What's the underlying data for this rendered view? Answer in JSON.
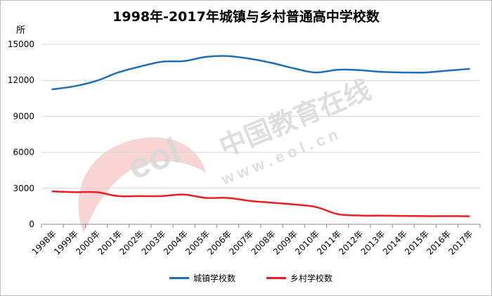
{
  "chart_data": {
    "type": "line",
    "title": "1998年-2017年城镇与乡村普通高中学校数",
    "ylabel": "所",
    "ylim": [
      0,
      15000
    ],
    "yticks": [
      0,
      3000,
      6000,
      9000,
      12000,
      15000
    ],
    "ytick_labels": [
      "0",
      "3000",
      "6000",
      "9000",
      "12000",
      "15000"
    ],
    "grid": true,
    "legend_position": "bottom",
    "categories": [
      "1998年",
      "1999年",
      "2000年",
      "2001年",
      "2002年",
      "2003年",
      "2004年",
      "2005年",
      "2006年",
      "2007年",
      "2008年",
      "2009年",
      "2010年",
      "2011年",
      "2012年",
      "2013年",
      "2014年",
      "2015年",
      "2016年",
      "2017年"
    ],
    "series": [
      {
        "name": "城镇学校数",
        "color": "#1f6fb5",
        "values": [
          11250,
          11500,
          11950,
          12650,
          13150,
          13550,
          13600,
          13950,
          14020,
          13800,
          13450,
          13000,
          12650,
          12880,
          12850,
          12700,
          12650,
          12650,
          12800,
          12950
        ]
      },
      {
        "name": "乡村学校数",
        "color": "#ee1c25",
        "values": [
          2750,
          2680,
          2680,
          2350,
          2350,
          2350,
          2480,
          2200,
          2200,
          1950,
          1800,
          1650,
          1450,
          850,
          730,
          720,
          700,
          680,
          680,
          670
        ]
      }
    ]
  },
  "watermark": {
    "text": "中国教育在线",
    "url_text": "w w w . e o l . c n",
    "logo_text": "eol"
  }
}
